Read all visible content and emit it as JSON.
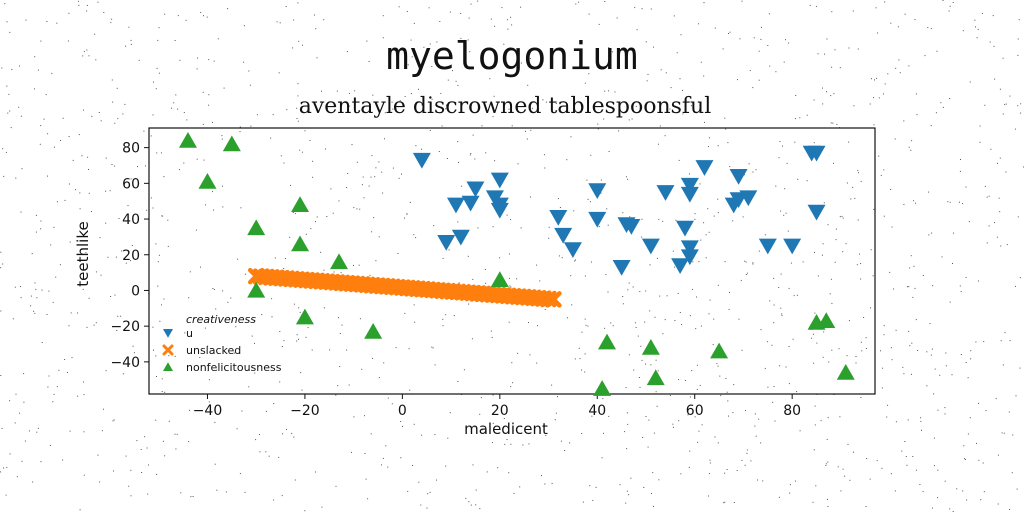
{
  "title": "myelogonium",
  "subtitle": "aventayle discrowned tablespoonsful",
  "chart_data": {
    "type": "scatter",
    "xlabel": "maledicent",
    "ylabel": "teethlike",
    "xlim": [
      -52,
      97
    ],
    "ylim": [
      -58,
      91
    ],
    "xticks": [
      -40,
      -20,
      0,
      20,
      40,
      60,
      80
    ],
    "yticks": [
      -40,
      -20,
      0,
      20,
      40,
      60,
      80
    ],
    "grid": false,
    "legend": {
      "title": "creativeness",
      "placement": "lower-left"
    },
    "series": [
      {
        "name": "u",
        "marker": "triangle-down",
        "color": "#1f77b4",
        "points": [
          [
            4,
            73
          ],
          [
            11,
            48
          ],
          [
            12,
            30
          ],
          [
            14,
            49
          ],
          [
            15,
            57
          ],
          [
            9,
            27
          ],
          [
            19,
            52
          ],
          [
            20,
            48
          ],
          [
            20,
            45
          ],
          [
            20,
            62
          ],
          [
            32,
            41
          ],
          [
            33,
            31
          ],
          [
            35,
            23
          ],
          [
            40,
            40
          ],
          [
            40,
            56
          ],
          [
            45,
            13
          ],
          [
            46,
            37
          ],
          [
            47,
            36
          ],
          [
            51,
            25
          ],
          [
            54,
            55
          ],
          [
            57,
            14
          ],
          [
            58,
            35
          ],
          [
            59,
            24
          ],
          [
            59,
            19
          ],
          [
            59,
            59
          ],
          [
            59,
            54
          ],
          [
            62,
            69
          ],
          [
            68,
            48
          ],
          [
            69,
            51
          ],
          [
            69,
            64
          ],
          [
            71,
            52
          ],
          [
            75,
            25
          ],
          [
            80,
            25
          ],
          [
            84,
            77
          ],
          [
            85,
            77
          ],
          [
            85,
            44
          ]
        ]
      },
      {
        "name": "unslacked",
        "marker": "x-filled",
        "color": "#ff7f0e",
        "line_from": [
          -30,
          8
        ],
        "line_to": [
          31,
          -5
        ],
        "count": 60
      },
      {
        "name": "nonfelicitousness",
        "marker": "triangle-up",
        "color": "#2ca02c",
        "points": [
          [
            -44,
            84
          ],
          [
            -40,
            61
          ],
          [
            -35,
            82
          ],
          [
            -30,
            35
          ],
          [
            -30,
            0
          ],
          [
            -21,
            48
          ],
          [
            -21,
            26
          ],
          [
            -20,
            -15
          ],
          [
            -13,
            16
          ],
          [
            -6,
            -23
          ],
          [
            20,
            6
          ],
          [
            41,
            -55
          ],
          [
            42,
            -29
          ],
          [
            51,
            -32
          ],
          [
            52,
            -49
          ],
          [
            65,
            -34
          ],
          [
            85,
            -18
          ],
          [
            87,
            -17
          ],
          [
            91,
            -46
          ]
        ]
      }
    ]
  }
}
